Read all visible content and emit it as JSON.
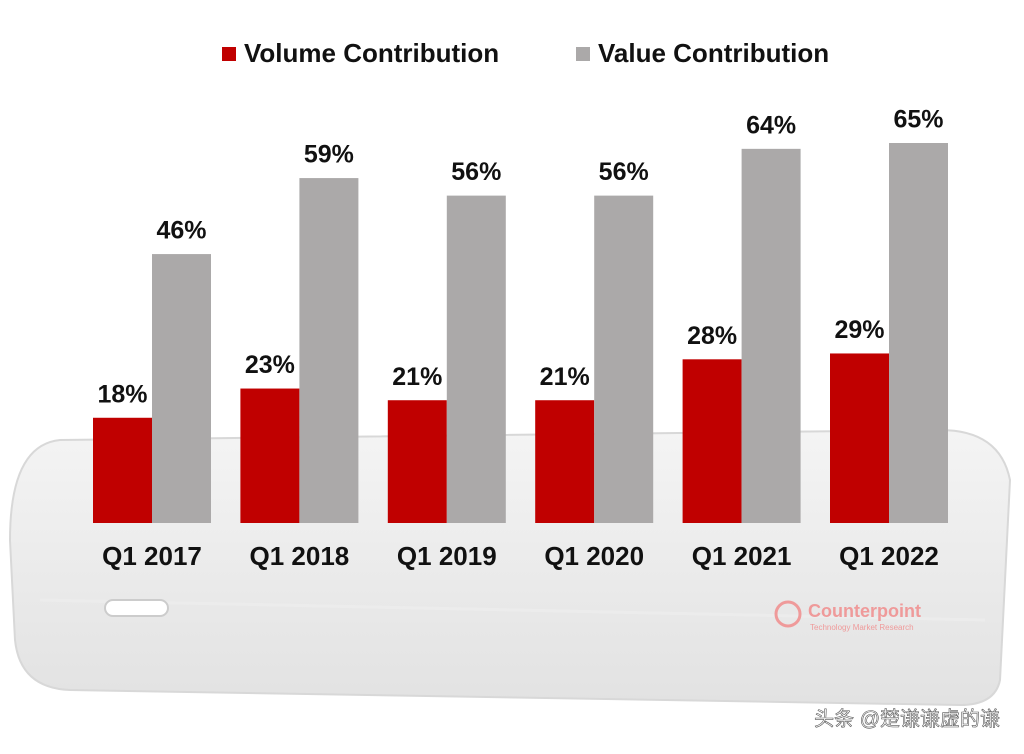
{
  "chart_data": {
    "type": "bar",
    "categories": [
      "Q1 2017",
      "Q1 2018",
      "Q1 2019",
      "Q1 2020",
      "Q1 2021",
      "Q1 2022"
    ],
    "series": [
      {
        "name": "Volume Contribution",
        "color": "#c00000",
        "values": [
          18,
          23,
          21,
          21,
          28,
          29
        ],
        "value_labels": [
          "18%",
          "23%",
          "21%",
          "21%",
          "28%",
          "29%"
        ]
      },
      {
        "name": "Value Contribution",
        "color": "#aba9a9",
        "values": [
          46,
          59,
          56,
          56,
          64,
          65
        ],
        "value_labels": [
          "46%",
          "59%",
          "56%",
          "56%",
          "64%",
          "65%"
        ]
      }
    ],
    "legend": "top",
    "logo": "Counterpoint",
    "logo_subtitle": "Technology Market Research",
    "watermark": "头条 @楚谦谦虚的谦"
  }
}
